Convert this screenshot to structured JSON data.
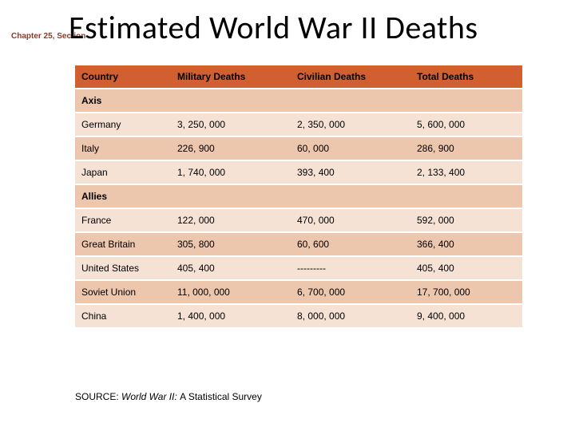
{
  "chapter_ref": "Chapter 25, Section",
  "chapter_ref_color": "#8b3a2a",
  "title": "Estimated World War II Deaths",
  "title_color": "#000000",
  "source_prefix": "SOURCE: ",
  "source_title": "World War II: ",
  "source_suffix": "A Statistical Survey",
  "table": {
    "header_bg": "#d15f30",
    "band_a": "#ecc6ad",
    "band_b": "#f5e2d4",
    "columns": [
      "Country",
      "Military Deaths",
      "Civilian Deaths",
      "Total Deaths"
    ],
    "rows": [
      {
        "type": "section",
        "band": "a",
        "cells": [
          "Axis",
          "",
          "",
          ""
        ]
      },
      {
        "type": "data",
        "band": "b",
        "cells": [
          "Germany",
          "3, 250, 000",
          "2, 350, 000",
          "5, 600, 000"
        ]
      },
      {
        "type": "data",
        "band": "a",
        "cells": [
          "Italy",
          "226, 900",
          "60, 000",
          "286, 900"
        ]
      },
      {
        "type": "data",
        "band": "b",
        "cells": [
          "Japan",
          "1, 740, 000",
          "393, 400",
          "2, 133, 400"
        ]
      },
      {
        "type": "section",
        "band": "a",
        "cells": [
          "Allies",
          "",
          "",
          ""
        ]
      },
      {
        "type": "data",
        "band": "b",
        "cells": [
          "France",
          "122, 000",
          "470, 000",
          "592, 000"
        ]
      },
      {
        "type": "data",
        "band": "a",
        "cells": [
          "Great Britain",
          "305, 800",
          "60, 600",
          "366, 400"
        ]
      },
      {
        "type": "data",
        "band": "b",
        "cells": [
          "United States",
          "405, 400",
          "---------",
          "405, 400"
        ]
      },
      {
        "type": "data",
        "band": "a",
        "cells": [
          "Soviet Union",
          "11, 000, 000",
          "6, 700, 000",
          "17, 700, 000"
        ]
      },
      {
        "type": "data",
        "band": "b",
        "cells": [
          "China",
          "1, 400, 000",
          "8, 000, 000",
          "9, 400, 000"
        ]
      }
    ]
  }
}
